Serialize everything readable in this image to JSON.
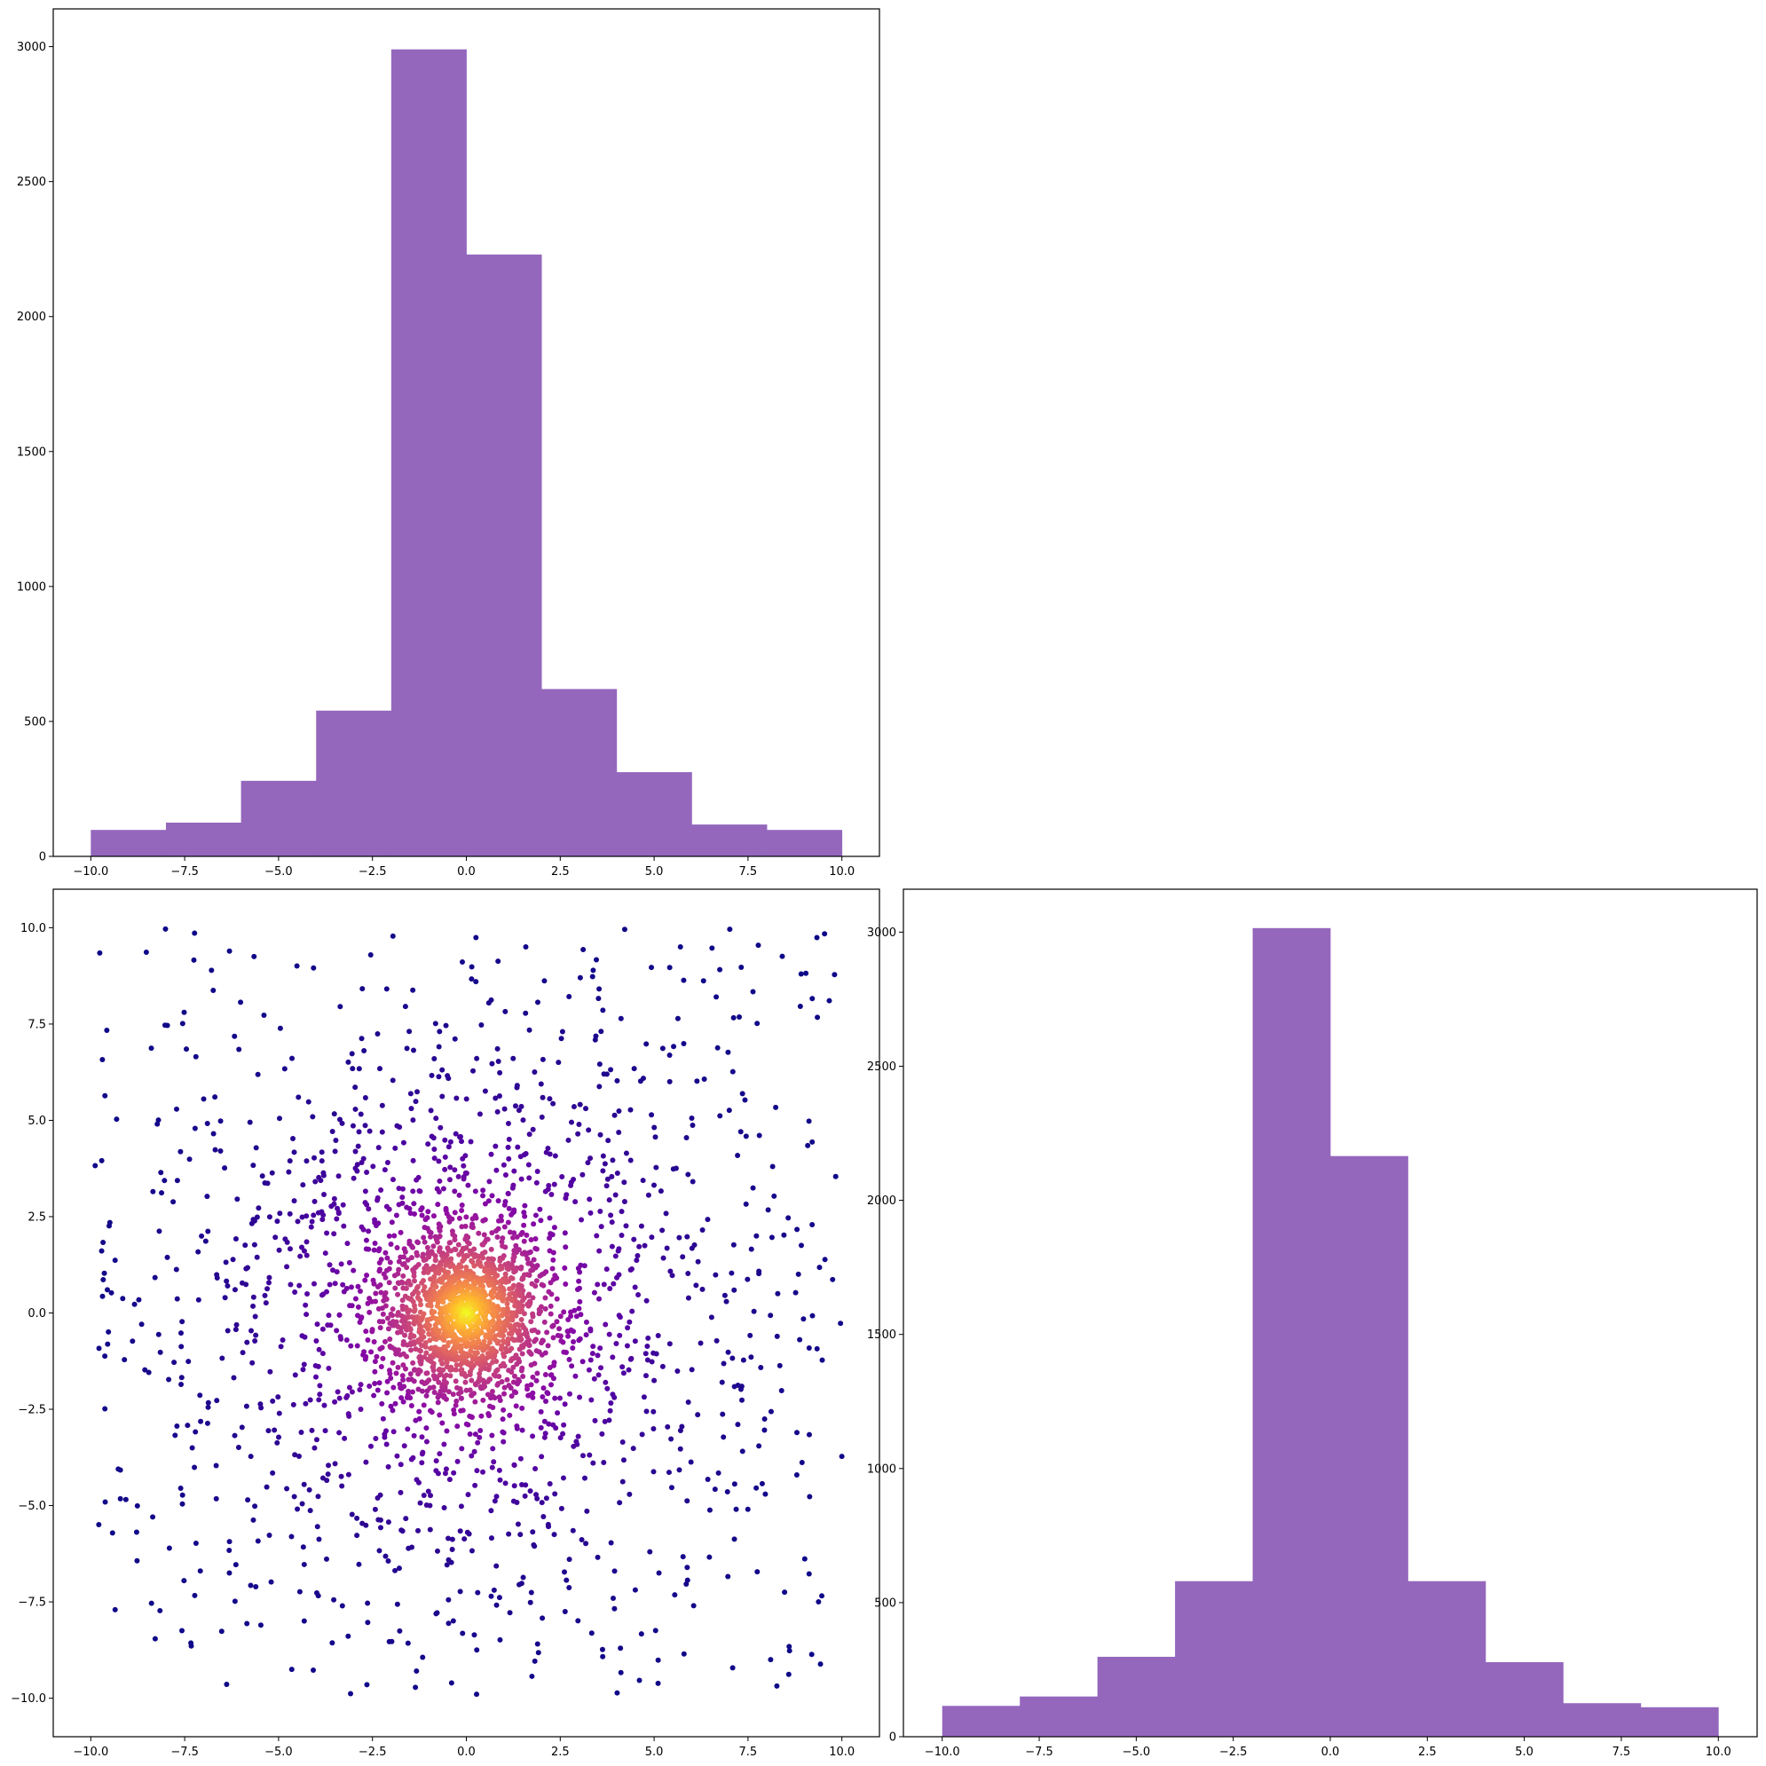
{
  "colors": {
    "bar_fill": "#9467bd",
    "background": "#ffffff",
    "scatter_colormap": "plasma"
  },
  "chart_data": [
    {
      "panel": "top-left",
      "type": "bar",
      "bin_edges": [
        -10,
        -8,
        -6,
        -4,
        -2,
        0,
        2,
        4,
        6,
        8,
        10
      ],
      "values": [
        98,
        125,
        280,
        540,
        2990,
        2230,
        620,
        312,
        118,
        98
      ],
      "xlim": [
        -11,
        11
      ],
      "ylim": [
        0,
        3140
      ],
      "xticks": [
        -10,
        -7.5,
        -5,
        -2.5,
        0,
        2.5,
        5,
        7.5,
        10
      ],
      "xtick_labels": [
        "−10.0",
        "−7.5",
        "−5.0",
        "−2.5",
        "0.0",
        "2.5",
        "5.0",
        "7.5",
        "10.0"
      ],
      "yticks": [
        0,
        500,
        1000,
        1500,
        2000,
        2500,
        3000
      ],
      "ytick_labels": [
        "0",
        "500",
        "1000",
        "1500",
        "2000",
        "2500",
        "3000"
      ],
      "grid": false,
      "legend": "none"
    },
    {
      "panel": "bottom-left",
      "type": "scatter",
      "point_count": 3000,
      "distribution": "mixture of a concentrated center cluster and a uniform spread over [-10, 10] x [-10, 10]; color by density (plasma colormap)",
      "xlim": [
        -11,
        11
      ],
      "ylim": [
        -11,
        11
      ],
      "xticks": [
        -10,
        -7.5,
        -5,
        -2.5,
        0,
        2.5,
        5,
        7.5,
        10
      ],
      "xtick_labels": [
        "−10.0",
        "−7.5",
        "−5.0",
        "−2.5",
        "0.0",
        "2.5",
        "5.0",
        "7.5",
        "10.0"
      ],
      "yticks": [
        -10,
        -7.5,
        -5,
        -2.5,
        0,
        2.5,
        5,
        7.5,
        10
      ],
      "ytick_labels": [
        "−10.0",
        "−7.5",
        "−5.0",
        "−2.5",
        "0.0",
        "2.5",
        "5.0",
        "7.5",
        "10.0"
      ],
      "grid": false,
      "legend": "none"
    },
    {
      "panel": "bottom-right",
      "type": "bar",
      "bin_edges": [
        -10,
        -8,
        -6,
        -4,
        -2,
        0,
        2,
        4,
        6,
        8,
        10
      ],
      "values": [
        115,
        150,
        298,
        580,
        3015,
        2165,
        580,
        278,
        125,
        110
      ],
      "xlim": [
        -11,
        11
      ],
      "ylim": [
        0,
        3160
      ],
      "xticks": [
        -10,
        -7.5,
        -5,
        -2.5,
        0,
        2.5,
        5,
        7.5,
        10
      ],
      "xtick_labels": [
        "−10.0",
        "−7.5",
        "−5.0",
        "−2.5",
        "0.0",
        "2.5",
        "5.0",
        "7.5",
        "10.0"
      ],
      "yticks": [
        0,
        500,
        1000,
        1500,
        2000,
        2500,
        3000
      ],
      "ytick_labels": [
        "0",
        "500",
        "1000",
        "1500",
        "2000",
        "2500",
        "3000"
      ],
      "grid": false,
      "legend": "none"
    }
  ]
}
